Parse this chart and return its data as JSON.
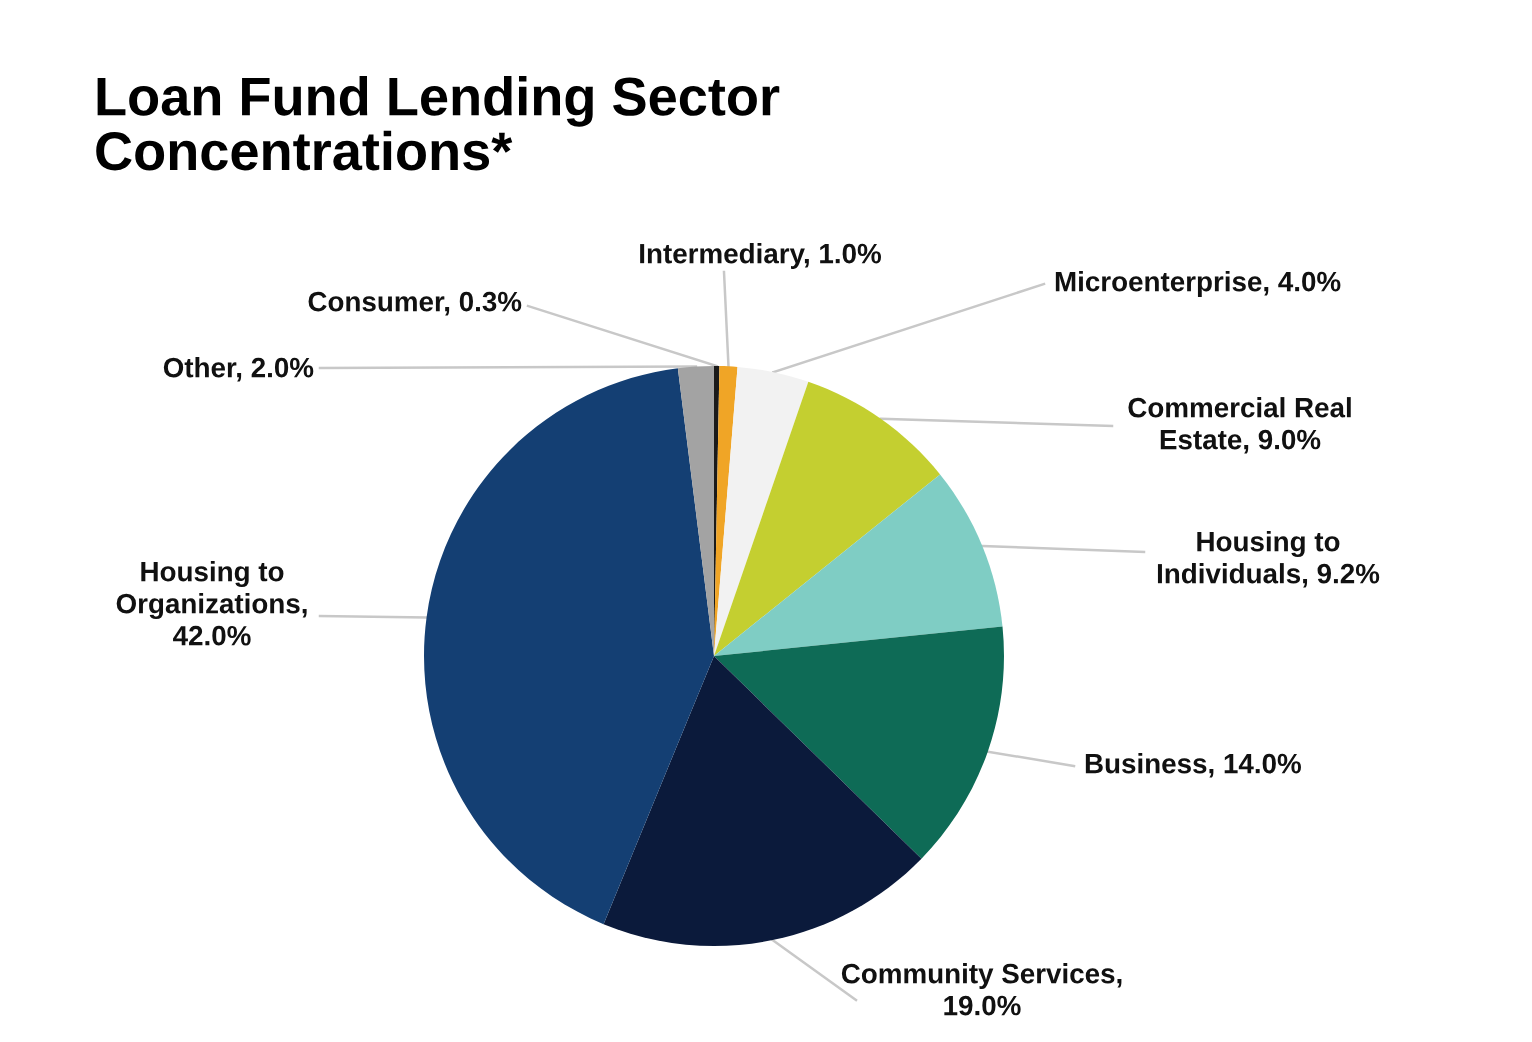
{
  "chart_data": {
    "type": "pie",
    "title": "Loan Fund Lending Sector\nConcentrations*",
    "categories": [
      "Consumer",
      "Intermediary",
      "Microenterprise",
      "Commercial Real\nEstate",
      "Housing to\nIndividuals",
      "Business",
      "Community Services",
      "Housing to\nOrganizations",
      "Other"
    ],
    "values": [
      0.3,
      1.0,
      4.0,
      9.0,
      9.2,
      14.0,
      19.0,
      42.0,
      2.0
    ],
    "value_labels": [
      ", 0.3%",
      ", 1.0%",
      ", 4.0%",
      ", 9.0%",
      ", 9.2%",
      ", 14.0%",
      ",\n19.0%",
      ",\n42.0%",
      ", 2.0%"
    ],
    "colors": [
      "#1a1a1a",
      "#f0a526",
      "#f2f2f2",
      "#c4cf30",
      "#7fcdc4",
      "#0e6b56",
      "#0b1a3b",
      "#143f73",
      "#a3a3a3"
    ],
    "legend": false
  }
}
